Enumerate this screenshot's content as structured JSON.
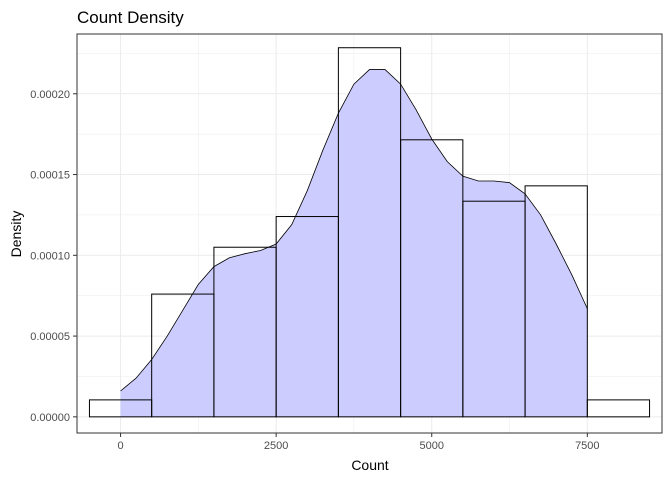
{
  "chart_data": {
    "type": "histogram",
    "title": "Count Density",
    "xlabel": "Count",
    "ylabel": "Density",
    "xlim": [
      -700,
      8700
    ],
    "ylim": [
      -1e-05,
      0.000237
    ],
    "x_ticks": [
      0,
      2500,
      5000,
      7500
    ],
    "x_tick_labels": [
      "0",
      "2500",
      "5000",
      "7500"
    ],
    "y_ticks": [
      0,
      5e-05,
      0.0001,
      0.00015,
      0.0002
    ],
    "y_tick_labels": [
      "0.00000",
      "0.00005",
      "0.00010",
      "0.00015",
      "0.00020"
    ],
    "grid": true,
    "bin_width": 1000,
    "bins": [
      {
        "x0": -500,
        "x1": 500,
        "density": 1.05e-05
      },
      {
        "x0": 500,
        "x1": 1500,
        "density": 7.6e-05
      },
      {
        "x0": 1500,
        "x1": 2500,
        "density": 0.000105
      },
      {
        "x0": 2500,
        "x1": 3500,
        "density": 0.000124
      },
      {
        "x0": 3500,
        "x1": 4500,
        "density": 0.0002285
      },
      {
        "x0": 4500,
        "x1": 5500,
        "density": 0.0001715
      },
      {
        "x0": 5500,
        "x1": 6500,
        "density": 0.0001335
      },
      {
        "x0": 6500,
        "x1": 7500,
        "density": 0.000143
      },
      {
        "x0": 7500,
        "x1": 8500,
        "density": 1.05e-05
      }
    ],
    "density_curve": {
      "fill_color": "#ccccff",
      "line_color": "#000000",
      "x": [
        0,
        250,
        500,
        750,
        1000,
        1250,
        1500,
        1750,
        2000,
        2250,
        2500,
        2750,
        3000,
        3250,
        3500,
        3750,
        4000,
        4250,
        4500,
        4750,
        5000,
        5250,
        5500,
        5750,
        6000,
        6250,
        6500,
        6750,
        7000,
        7250,
        7500
      ],
      "y": [
        1.6e-05,
        2.4e-05,
        3.55e-05,
        5e-05,
        6.6e-05,
        8.2e-05,
        9.3e-05,
        9.85e-05,
        0.000101,
        0.000103,
        0.000107,
        0.000119,
        0.00014,
        0.000165,
        0.000188,
        0.000206,
        0.000215,
        0.000215,
        0.000206,
        0.00019,
        0.000172,
        0.000158,
        0.000149,
        0.000146,
        0.000146,
        0.000145,
        0.000138,
        0.000125,
        0.000107,
        8.8e-05,
        6.7e-05
      ]
    }
  }
}
